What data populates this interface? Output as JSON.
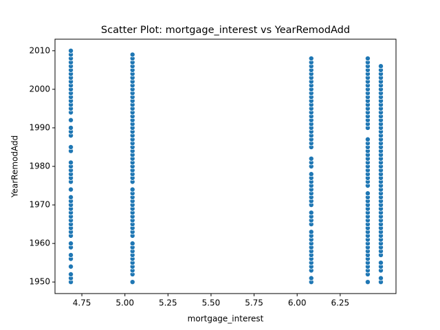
{
  "chart_data": {
    "type": "scatter",
    "title": "Scatter Plot: mortgage_interest vs YearRemodAdd",
    "x_label": "mortgage_interest",
    "y_label": "YearRemodAdd",
    "xlim": [
      4.594,
      6.574
    ],
    "ylim": [
      1947,
      2013
    ],
    "xticks": [
      4.75,
      {
        "value": 5,
        "label": "5.00"
      },
      5.25,
      {
        "value": 5.5,
        "label": "5.50"
      },
      5.75,
      {
        "value": 6,
        "label": "6.00"
      },
      6.25
    ],
    "yticks": [
      1950,
      1960,
      1970,
      1980,
      1990,
      2000,
      2010
    ],
    "series": [
      {
        "x": 4.686,
        "color": "#1f77b4",
        "values": [
          1950,
          1951,
          1952,
          1954,
          1956,
          1957,
          1959,
          1960,
          1962,
          1963,
          1964,
          1965,
          1966,
          1967,
          1968,
          1969,
          1970,
          1971,
          1972,
          1974,
          1976,
          1977,
          1978,
          1979,
          1980,
          1981,
          1984,
          1985,
          1988,
          1989,
          1990,
          1992,
          1994,
          1995,
          1996,
          1997,
          1998,
          1999,
          2000,
          2001,
          2002,
          2003,
          2004,
          2005,
          2006,
          2007,
          2008,
          2009,
          2010
        ]
      },
      {
        "x": 5.044,
        "color": "#1f77b4",
        "values": [
          1950,
          1952,
          1953,
          1954,
          1955,
          1956,
          1957,
          1958,
          1959,
          1960,
          1962,
          1963,
          1964,
          1965,
          1966,
          1967,
          1968,
          1969,
          1970,
          1971,
          1972,
          1973,
          1974,
          1976,
          1977,
          1978,
          1979,
          1980,
          1981,
          1982,
          1983,
          1984,
          1985,
          1986,
          1987,
          1988,
          1989,
          1990,
          1991,
          1992,
          1993,
          1994,
          1995,
          1996,
          1997,
          1998,
          1999,
          2000,
          2001,
          2002,
          2003,
          2004,
          2005,
          2006,
          2007,
          2008,
          2009
        ]
      },
      {
        "x": 6.082,
        "color": "#1f77b4",
        "values": [
          1950,
          1951,
          1953,
          1954,
          1955,
          1956,
          1957,
          1958,
          1959,
          1960,
          1961,
          1962,
          1963,
          1965,
          1966,
          1967,
          1968,
          1970,
          1971,
          1972,
          1973,
          1974,
          1975,
          1976,
          1977,
          1978,
          1980,
          1981,
          1982,
          1985,
          1986,
          1987,
          1988,
          1989,
          1990,
          1991,
          1992,
          1993,
          1994,
          1995,
          1996,
          1997,
          1998,
          1999,
          2000,
          2001,
          2002,
          2003,
          2004,
          2005,
          2006,
          2007,
          2008
        ]
      },
      {
        "x": 6.41,
        "color": "#1f77b4",
        "values": [
          1950,
          1952,
          1953,
          1954,
          1955,
          1956,
          1957,
          1958,
          1959,
          1960,
          1961,
          1962,
          1963,
          1964,
          1965,
          1966,
          1967,
          1968,
          1969,
          1970,
          1971,
          1972,
          1973,
          1975,
          1976,
          1977,
          1978,
          1979,
          1980,
          1981,
          1982,
          1983,
          1984,
          1985,
          1986,
          1987,
          1990,
          1991,
          1992,
          1993,
          1994,
          1995,
          1996,
          1997,
          1998,
          1999,
          2000,
          2001,
          2002,
          2003,
          2004,
          2005,
          2006,
          2007,
          2008
        ]
      },
      {
        "x": 6.486,
        "color": "#1f77b4",
        "values": [
          1950,
          1951,
          1953,
          1954,
          1955,
          1957,
          1958,
          1959,
          1960,
          1961,
          1962,
          1963,
          1964,
          1965,
          1966,
          1967,
          1968,
          1969,
          1970,
          1971,
          1972,
          1973,
          1974,
          1975,
          1976,
          1977,
          1978,
          1979,
          1980,
          1981,
          1982,
          1983,
          1984,
          1985,
          1986,
          1987,
          1988,
          1989,
          1990,
          1991,
          1992,
          1993,
          1994,
          1995,
          1996,
          1997,
          1998,
          1999,
          2000,
          2001,
          2002,
          2003,
          2004,
          2005,
          2006
        ]
      }
    ]
  }
}
